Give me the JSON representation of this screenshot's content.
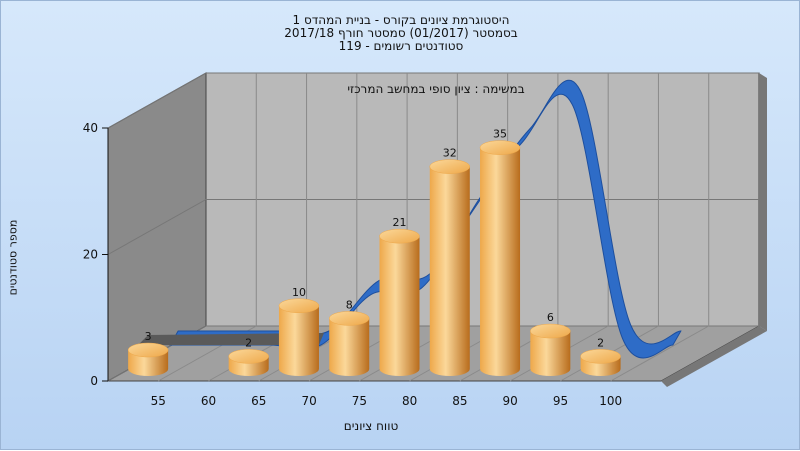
{
  "chart_data": {
    "type": "bar",
    "title_lines": [
      "היסטוגרמת ציונים בקורס - בניית המהדס 1",
      "בסמסטר  (01/2017)  סמסטר חורף 2017/18",
      "סטודנטים רשומים - 119"
    ],
    "subtitle": "במשימה : ציון סופי במחשב המרכזי",
    "xlabel": "טווח ציונים",
    "ylabel": "מספר סטודנטים",
    "x_ticks": [
      "55",
      "60",
      "65",
      "70",
      "75",
      "80",
      "85",
      "90",
      "95",
      "100"
    ],
    "y_ticks": [
      "0",
      "20",
      "40"
    ],
    "ylim": [
      0,
      40
    ],
    "bars": [
      {
        "slot": 0,
        "value": 3,
        "label": "3"
      },
      {
        "slot": 2,
        "value": 2,
        "label": "2"
      },
      {
        "slot": 3,
        "value": 10,
        "label": "10"
      },
      {
        "slot": 4,
        "value": 8,
        "label": "8"
      },
      {
        "slot": 5,
        "value": 21,
        "label": "21"
      },
      {
        "slot": 6,
        "value": 32,
        "label": "32"
      },
      {
        "slot": 7,
        "value": 35,
        "label": "35"
      },
      {
        "slot": 8,
        "value": 6,
        "label": "6"
      },
      {
        "slot": 9,
        "value": 2,
        "label": "2"
      }
    ],
    "curve": [
      0,
      0,
      0,
      0,
      8,
      9,
      21,
      32,
      38,
      1,
      0
    ],
    "colors": {
      "bar_light": "#fbd89a",
      "bar_mid": "#eea84a",
      "bar_dark": "#b86c1c",
      "curve_front": "#2e6cc7",
      "curve_side": "#1d4f9e",
      "curve_gray": "#5a5a5a",
      "wall": "#b9b9b9",
      "left_wall": "#8a8a8a",
      "floor": "#a0a0a0"
    },
    "grid": true
  }
}
